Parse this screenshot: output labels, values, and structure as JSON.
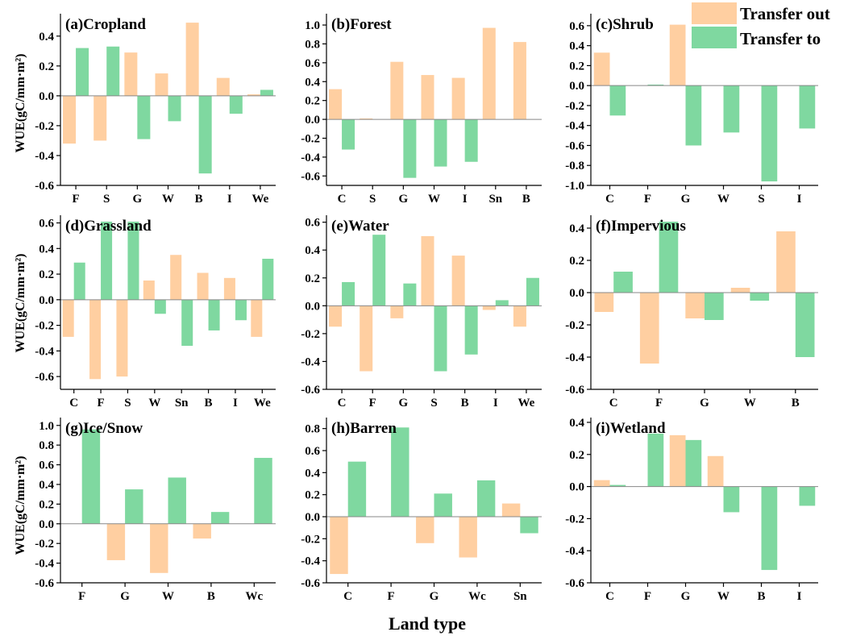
{
  "legend": {
    "out_label": "Transfer out",
    "to_label": "Transfer to",
    "out_color": "#FFCFA1",
    "to_color": "#7FD8A0"
  },
  "xlabel": "Land type",
  "ylabel": "WUE(gC/mm·m²)",
  "chart_data": [
    {
      "type": "bar",
      "title": "(a)Cropland",
      "categories": [
        "F",
        "S",
        "G",
        "W",
        "B",
        "I",
        "We"
      ],
      "series": [
        {
          "name": "Transfer out",
          "values": [
            -0.32,
            -0.3,
            0.29,
            0.15,
            0.49,
            0.12,
            0.01
          ]
        },
        {
          "name": "Transfer to",
          "values": [
            0.32,
            0.33,
            -0.29,
            -0.17,
            -0.52,
            -0.12,
            0.04
          ]
        }
      ],
      "ylim": [
        -0.6,
        0.55
      ],
      "yticks": [
        -0.6,
        -0.4,
        -0.2,
        0.0,
        0.2,
        0.4
      ],
      "ytick_labels": [
        "-0.6",
        "-0.4",
        "-0.2",
        "0.0",
        "0.2",
        "0.4"
      ]
    },
    {
      "type": "bar",
      "title": "(b)Forest",
      "categories": [
        "C",
        "S",
        "G",
        "W",
        "I",
        "Sn",
        "B"
      ],
      "series": [
        {
          "name": "Transfer out",
          "values": [
            0.32,
            0.01,
            0.61,
            0.47,
            0.44,
            0.97,
            0.82
          ]
        },
        {
          "name": "Transfer to",
          "values": [
            -0.32,
            0.0,
            -0.62,
            -0.5,
            -0.45,
            0.0,
            0.0
          ]
        }
      ],
      "ylim": [
        -0.7,
        1.12
      ],
      "yticks": [
        -0.6,
        -0.4,
        -0.2,
        0.0,
        0.2,
        0.4,
        0.6,
        0.8,
        1.0
      ],
      "ytick_labels": [
        "-0.6",
        "-0.4",
        "-0.2",
        "0.0",
        "0.2",
        "0.4",
        "0.6",
        "0.8",
        "1.0"
      ]
    },
    {
      "type": "bar",
      "title": "(c)Shrub",
      "categories": [
        "C",
        "F",
        "G",
        "W",
        "S",
        "I"
      ],
      "series": [
        {
          "name": "Transfer out",
          "values": [
            0.33,
            0.0,
            0.61,
            0.0,
            0.0,
            0.0
          ]
        },
        {
          "name": "Transfer to",
          "values": [
            -0.3,
            0.01,
            -0.6,
            -0.47,
            -0.96,
            -0.43
          ]
        }
      ],
      "ylim": [
        -1.0,
        0.72
      ],
      "yticks": [
        -1.0,
        -0.8,
        -0.6,
        -0.4,
        -0.2,
        0.0,
        0.2,
        0.4,
        0.6
      ],
      "ytick_labels": [
        "-1.0",
        "-0.8",
        "-0.6",
        "-0.4",
        "-0.2",
        "0.0",
        "0.2",
        "0.4",
        "0.6"
      ]
    },
    {
      "type": "bar",
      "title": "(d)Grassland",
      "categories": [
        "C",
        "F",
        "S",
        "W",
        "Sn",
        "B",
        "I",
        "We"
      ],
      "series": [
        {
          "name": "Transfer out",
          "values": [
            -0.29,
            -0.62,
            -0.6,
            0.15,
            0.35,
            0.21,
            0.17,
            -0.29
          ]
        },
        {
          "name": "Transfer to",
          "values": [
            0.29,
            0.61,
            0.61,
            -0.11,
            -0.36,
            -0.24,
            -0.16,
            0.32
          ]
        }
      ],
      "ylim": [
        -0.7,
        0.66
      ],
      "yticks": [
        -0.6,
        -0.4,
        -0.2,
        0.0,
        0.2,
        0.4,
        0.6
      ],
      "ytick_labels": [
        "-0.6",
        "-0.4",
        "-0.2",
        "0.0",
        "0.2",
        "0.4",
        "0.6"
      ]
    },
    {
      "type": "bar",
      "title": "(e)Water",
      "categories": [
        "C",
        "F",
        "G",
        "S",
        "B",
        "I",
        "We"
      ],
      "series": [
        {
          "name": "Transfer out",
          "values": [
            -0.15,
            -0.47,
            -0.09,
            0.5,
            0.36,
            -0.03,
            -0.15
          ]
        },
        {
          "name": "Transfer to",
          "values": [
            0.17,
            0.51,
            0.16,
            -0.47,
            -0.35,
            0.04,
            0.2
          ]
        }
      ],
      "ylim": [
        -0.6,
        0.65
      ],
      "yticks": [
        -0.6,
        -0.4,
        -0.2,
        0.0,
        0.2,
        0.4,
        0.6
      ],
      "ytick_labels": [
        "-0.6",
        "-0.4",
        "-0.2",
        "0.0",
        "0.2",
        "0.4",
        "0.6"
      ]
    },
    {
      "type": "bar",
      "title": "(f)Impervious",
      "categories": [
        "C",
        "F",
        "G",
        "W",
        "B"
      ],
      "series": [
        {
          "name": "Transfer out",
          "values": [
            -0.12,
            -0.44,
            -0.16,
            0.03,
            0.38
          ]
        },
        {
          "name": "Transfer to",
          "values": [
            0.13,
            0.44,
            -0.17,
            -0.05,
            -0.4
          ]
        }
      ],
      "ylim": [
        -0.6,
        0.48
      ],
      "yticks": [
        -0.6,
        -0.4,
        -0.2,
        0.0,
        0.2,
        0.4
      ],
      "ytick_labels": [
        "-0.6",
        "-0.4",
        "-0.2",
        "0.0",
        "0.2",
        "0.4"
      ]
    },
    {
      "type": "bar",
      "title": "(g)Ice/Snow",
      "categories": [
        "F",
        "G",
        "W",
        "B",
        "Wc"
      ],
      "series": [
        {
          "name": "Transfer out",
          "values": [
            0.0,
            -0.37,
            -0.5,
            -0.15,
            0.0
          ]
        },
        {
          "name": "Transfer to",
          "values": [
            0.96,
            0.35,
            0.47,
            0.12,
            0.67
          ]
        }
      ],
      "ylim": [
        -0.6,
        1.08
      ],
      "yticks": [
        -0.6,
        -0.4,
        -0.2,
        0.0,
        0.2,
        0.4,
        0.6,
        0.8,
        1.0
      ],
      "ytick_labels": [
        "-0.6",
        "-0.4",
        "-0.2",
        "0.0",
        "0.2",
        "0.4",
        "0.6",
        "0.8",
        "1.0"
      ]
    },
    {
      "type": "bar",
      "title": "(h)Barren",
      "categories": [
        "C",
        "F",
        "G",
        "Wc",
        "Sn"
      ],
      "series": [
        {
          "name": "Transfer out",
          "values": [
            -0.52,
            0.0,
            -0.24,
            -0.37,
            0.12
          ]
        },
        {
          "name": "Transfer to",
          "values": [
            0.5,
            0.81,
            0.21,
            0.33,
            -0.15
          ]
        }
      ],
      "ylim": [
        -0.6,
        0.9
      ],
      "yticks": [
        -0.6,
        -0.4,
        -0.2,
        0.0,
        0.2,
        0.4,
        0.6,
        0.8
      ],
      "ytick_labels": [
        "-0.6",
        "-0.4",
        "-0.2",
        "0.0",
        "0.2",
        "0.4",
        "0.6",
        "0.8"
      ]
    },
    {
      "type": "bar",
      "title": "(i)Wetland",
      "categories": [
        "C",
        "F",
        "G",
        "W",
        "B",
        "I"
      ],
      "series": [
        {
          "name": "Transfer out",
          "values": [
            0.04,
            0.0,
            0.32,
            0.19,
            0.0,
            0.0
          ]
        },
        {
          "name": "Transfer to",
          "values": [
            0.01,
            0.33,
            0.29,
            -0.16,
            -0.52,
            -0.12
          ]
        }
      ],
      "ylim": [
        -0.6,
        0.43
      ],
      "yticks": [
        -0.6,
        -0.4,
        -0.2,
        0.0,
        0.2,
        0.4
      ],
      "ytick_labels": [
        "-0.6",
        "-0.4",
        "-0.2",
        "0.0",
        "0.2",
        "0.4"
      ]
    }
  ]
}
